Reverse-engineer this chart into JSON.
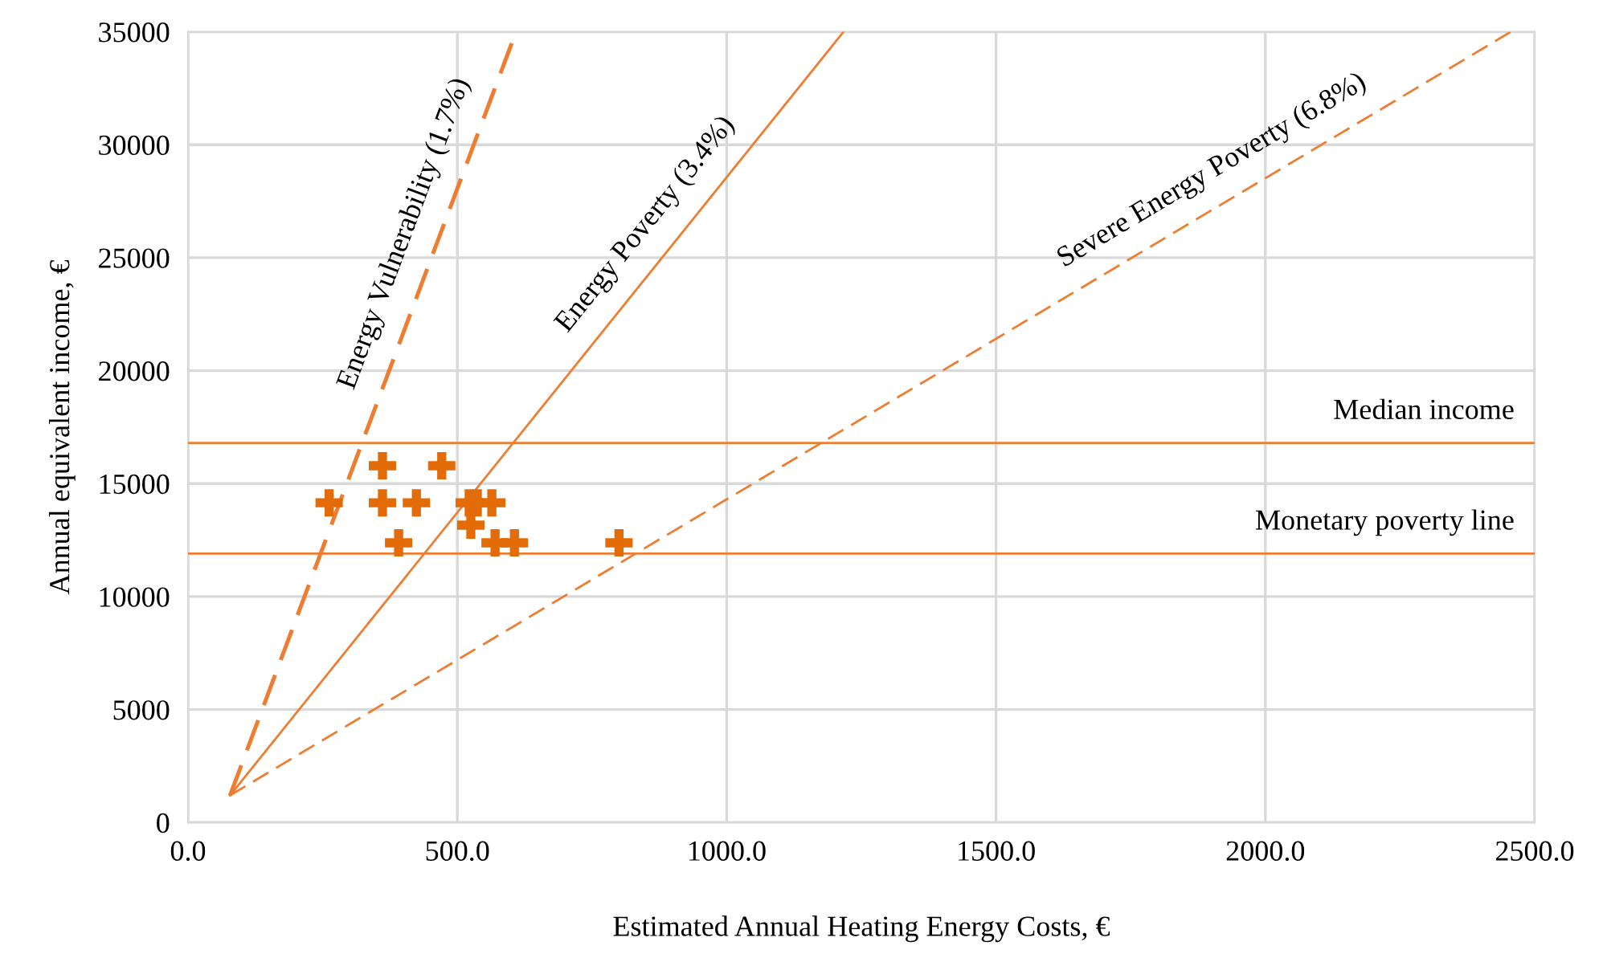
{
  "chart_data": {
    "type": "scatter",
    "xlabel": "Estimated Annual Heating Energy Costs, €",
    "ylabel": "Annual equivalent income, €",
    "xlim": [
      0,
      2500
    ],
    "ylim": [
      0,
      35000
    ],
    "xticks": [
      {
        "value": 0,
        "label": "0.0"
      },
      {
        "value": 500,
        "label": "500.0"
      },
      {
        "value": 1000,
        "label": "1000.0"
      },
      {
        "value": 1500,
        "label": "1500.0"
      },
      {
        "value": 2000,
        "label": "2000.0"
      },
      {
        "value": 2500,
        "label": "2500.0"
      }
    ],
    "yticks": [
      0,
      5000,
      10000,
      15000,
      20000,
      25000,
      30000,
      35000
    ],
    "grid": true,
    "legend": false,
    "series": [
      {
        "color": "#e36c09",
        "marker": "cross",
        "x": [
          262,
          361,
          471,
          361,
          424,
          391,
          522,
          537,
          564,
          525,
          570,
          606,
          800
        ],
        "values": [
          14150,
          15790,
          15790,
          14150,
          14150,
          12380,
          14150,
          14150,
          14150,
          13160,
          12380,
          12380,
          12380
        ]
      },
      {
        "type": "line",
        "name": "Energy Vulnerability (1.7%)",
        "color": "#ed7d31",
        "line_style": "dashed",
        "x": [
          78,
          609
        ],
        "values": [
          1200,
          35000
        ]
      },
      {
        "type": "line",
        "name": "Energy Poverty (3.4%)",
        "color": "#ed7d31",
        "line_style": "solid",
        "x": [
          78,
          1217
        ],
        "values": [
          1200,
          35000
        ]
      },
      {
        "type": "line",
        "name": "Severe Energy Poverty (6.8%)",
        "color": "#ed7d31",
        "line_style": "dashed",
        "x": [
          78,
          2456
        ],
        "values": [
          1200,
          35000
        ]
      }
    ],
    "ref_lines": [
      {
        "axis": "y",
        "value": 16800,
        "label": "Median income",
        "color": "#ed7d31"
      },
      {
        "axis": "y",
        "value": 11900,
        "label": "Monetary poverty line",
        "color": "#ed7d31"
      }
    ]
  }
}
